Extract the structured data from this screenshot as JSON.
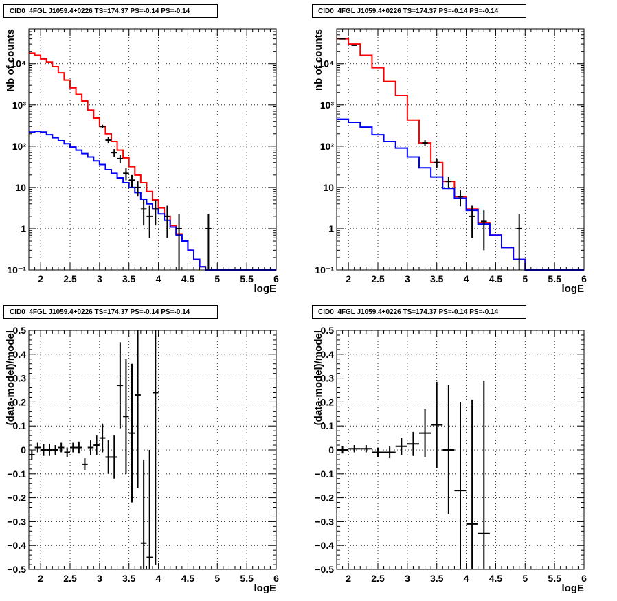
{
  "chart_data": [
    {
      "type": "step",
      "title": "CID0_4FGL J1059.4+0226 TS=174.37 PS=-0.14 PS=-0.14",
      "xlabel": "logE",
      "ylabel": "Nb of counts",
      "xlim": [
        1.8,
        6.0
      ],
      "ylim": [
        0.1,
        70000
      ],
      "yscale": "log",
      "xticks": [
        2,
        2.5,
        3,
        3.5,
        4,
        4.5,
        5,
        5.5,
        6
      ],
      "xtick_labels": [
        "2",
        "2.5",
        "3",
        "3.5",
        "4",
        "4.5",
        "5",
        "5.5",
        "6"
      ],
      "yticks": [
        0.1,
        1,
        10,
        100,
        1000,
        10000
      ],
      "ytick_labels": [
        "10⁻¹",
        "1",
        "10",
        "10²",
        "10³",
        "10⁴"
      ],
      "grid": true,
      "bin_edges": [
        1.8,
        1.9,
        2.0,
        2.1,
        2.2,
        2.3,
        2.4,
        2.5,
        2.6,
        2.7,
        2.8,
        2.9,
        3.0,
        3.1,
        3.2,
        3.3,
        3.4,
        3.5,
        3.6,
        3.7,
        3.8,
        3.9,
        4.0,
        4.1,
        4.2,
        4.3,
        4.4,
        4.5,
        4.6,
        4.7,
        4.8,
        4.9,
        5.0,
        5.1,
        5.2,
        5.3,
        5.4,
        5.5,
        5.6,
        5.7,
        5.8,
        5.9,
        6.0
      ],
      "series": [
        {
          "color": "#ff0000",
          "values": [
            18000,
            16000,
            13000,
            11000,
            8500,
            6000,
            4000,
            2600,
            1800,
            1250,
            750,
            480,
            300,
            200,
            130,
            80,
            52,
            32,
            20,
            13,
            8,
            5,
            3.2,
            2,
            1.2,
            0.75,
            0.5,
            0.3,
            0.18,
            0.12,
            0.1,
            0.1,
            0.1,
            0.1,
            0.1,
            0.1,
            0.1,
            0.1,
            0.1,
            0.1,
            0.1,
            0.1
          ]
        },
        {
          "color": "#0000ff",
          "values": [
            220,
            230,
            220,
            190,
            160,
            135,
            115,
            95,
            80,
            66,
            55,
            44,
            36,
            27,
            22,
            17,
            13,
            10,
            7.5,
            5.2,
            4,
            3,
            2.3,
            1.6,
            1.1,
            0.7,
            0.5,
            0.3,
            0.18,
            0.12,
            0.1,
            0.1,
            0.1,
            0.1,
            0.1,
            0.1,
            0.1,
            0.1,
            0.1,
            0.1,
            0.1,
            0.1
          ]
        }
      ],
      "points": [
        {
          "x": 3.05,
          "y": 300,
          "ylo": 270,
          "yhi": 330
        },
        {
          "x": 3.15,
          "y": 140,
          "ylo": 120,
          "yhi": 165
        },
        {
          "x": 3.25,
          "y": 70,
          "ylo": 55,
          "yhi": 85
        },
        {
          "x": 3.35,
          "y": 50,
          "ylo": 38,
          "yhi": 62
        },
        {
          "x": 3.45,
          "y": 22,
          "ylo": 15,
          "yhi": 30
        },
        {
          "x": 3.55,
          "y": 15,
          "ylo": 10,
          "yhi": 20
        },
        {
          "x": 3.65,
          "y": 10,
          "ylo": 6,
          "yhi": 14
        },
        {
          "x": 3.75,
          "y": 3,
          "ylo": 1.2,
          "yhi": 5
        },
        {
          "x": 3.85,
          "y": 2,
          "ylo": 0.6,
          "yhi": 3.6
        },
        {
          "x": 3.95,
          "y": 3,
          "ylo": 1.2,
          "yhi": 5
        },
        {
          "x": 4.15,
          "y": 2,
          "ylo": 0.6,
          "yhi": 3.6
        },
        {
          "x": 4.35,
          "y": 1,
          "ylo": 0.1,
          "yhi": 2.3
        },
        {
          "x": 4.85,
          "y": 1,
          "ylo": 0.1,
          "yhi": 2.3
        }
      ]
    },
    {
      "type": "step",
      "title": "CID0_4FGL J1059.4+0226 TS=174.37 PS=-0.14 PS=-0.14",
      "xlabel": "logE",
      "ylabel": "nb of counts",
      "xlim": [
        1.8,
        6.0
      ],
      "ylim": [
        0.1,
        70000
      ],
      "yscale": "log",
      "xticks": [
        2,
        2.5,
        3,
        3.5,
        4,
        4.5,
        5,
        5.5,
        6
      ],
      "xtick_labels": [
        "2",
        "2.5",
        "3",
        "3.5",
        "4",
        "4.5",
        "5",
        "5.5",
        "6"
      ],
      "yticks": [
        0.1,
        1,
        10,
        100,
        1000,
        10000
      ],
      "ytick_labels": [
        "10⁻¹",
        "1",
        "10",
        "10²",
        "10³",
        "10⁴"
      ],
      "grid": true,
      "bin_edges": [
        1.8,
        2.0,
        2.2,
        2.4,
        2.6,
        2.8,
        3.0,
        3.2,
        3.4,
        3.6,
        3.8,
        4.0,
        4.2,
        4.4,
        4.6,
        4.8,
        5.0,
        5.2,
        5.4,
        5.6,
        5.8,
        6.0
      ],
      "series": [
        {
          "color": "#ff0000",
          "values": [
            40000,
            30000,
            16000,
            8000,
            3700,
            1700,
            430,
            120,
            40,
            14,
            6,
            3,
            1.4,
            0.7,
            0.35,
            0.18,
            0.1,
            0.1,
            0.1,
            0.1,
            0.1
          ]
        },
        {
          "color": "#0000ff",
          "values": [
            450,
            380,
            290,
            190,
            130,
            90,
            55,
            30,
            18,
            9.5,
            5.5,
            2.8,
            1.3,
            0.7,
            0.35,
            0.18,
            0.1,
            0.1,
            0.1,
            0.1,
            0.1
          ]
        }
      ],
      "points": [
        {
          "x": 1.9,
          "y": 40000,
          "ylo": 39000,
          "yhi": 41000
        },
        {
          "x": 2.1,
          "y": 28000,
          "ylo": 27000,
          "yhi": 29000
        },
        {
          "x": 3.3,
          "y": 120,
          "ylo": 100,
          "yhi": 140
        },
        {
          "x": 3.5,
          "y": 40,
          "ylo": 30,
          "yhi": 50
        },
        {
          "x": 3.7,
          "y": 14,
          "ylo": 10,
          "yhi": 18
        },
        {
          "x": 3.9,
          "y": 6,
          "ylo": 3.5,
          "yhi": 8.5
        },
        {
          "x": 4.1,
          "y": 2,
          "ylo": 0.6,
          "yhi": 3.6
        },
        {
          "x": 4.3,
          "y": 1.5,
          "ylo": 0.3,
          "yhi": 2.8
        },
        {
          "x": 4.9,
          "y": 1,
          "ylo": 0.1,
          "yhi": 2.3
        }
      ]
    },
    {
      "type": "errorbar",
      "title": "CID0_4FGL J1059.4+0226 TS=174.37 PS=-0.14 PS=-0.14",
      "xlabel": "logE",
      "ylabel": "(data-model)/model",
      "xlim": [
        1.8,
        6.0
      ],
      "ylim": [
        -0.5,
        0.5
      ],
      "yscale": "linear",
      "xticks": [
        2,
        2.5,
        3,
        3.5,
        4,
        4.5,
        5,
        5.5,
        6
      ],
      "xtick_labels": [
        "2",
        "2.5",
        "3",
        "3.5",
        "4",
        "4.5",
        "5",
        "5.5",
        "6"
      ],
      "yticks": [
        -0.5,
        -0.4,
        -0.3,
        -0.2,
        -0.1,
        0,
        0.1,
        0.2,
        0.3,
        0.4,
        0.5
      ],
      "ytick_labels": [
        "−0.5",
        "−0.4",
        "−0.3",
        "−0.2",
        "−0.1",
        "0",
        "0.1",
        "0.2",
        "0.3",
        "0.4",
        "0.5"
      ],
      "grid": true,
      "xerr": 0.05,
      "points": [
        {
          "x": 1.85,
          "y": -0.02,
          "err": 0.02
        },
        {
          "x": 1.95,
          "y": 0.01,
          "err": 0.02
        },
        {
          "x": 2.05,
          "y": 0.0,
          "err": 0.025
        },
        {
          "x": 2.15,
          "y": 0.0,
          "err": 0.025
        },
        {
          "x": 2.25,
          "y": 0.0,
          "err": 0.02
        },
        {
          "x": 2.35,
          "y": 0.01,
          "err": 0.02
        },
        {
          "x": 2.45,
          "y": -0.01,
          "err": 0.02
        },
        {
          "x": 2.55,
          "y": 0.01,
          "err": 0.02
        },
        {
          "x": 2.65,
          "y": 0.01,
          "err": 0.025
        },
        {
          "x": 2.75,
          "y": -0.06,
          "err": 0.025
        },
        {
          "x": 2.85,
          "y": 0.01,
          "err": 0.03
        },
        {
          "x": 2.95,
          "y": 0.02,
          "err": 0.04
        },
        {
          "x": 3.05,
          "y": 0.05,
          "err": 0.06
        },
        {
          "x": 3.15,
          "y": -0.03,
          "err": 0.07
        },
        {
          "x": 3.25,
          "y": -0.03,
          "err": 0.09
        },
        {
          "x": 3.35,
          "y": 0.27,
          "err": 0.18
        },
        {
          "x": 3.45,
          "y": 0.14,
          "err": 0.24
        },
        {
          "x": 3.55,
          "y": 0.07,
          "err": 0.29
        },
        {
          "x": 3.65,
          "y": 0.23,
          "err": 0.39
        },
        {
          "x": 3.75,
          "y": -0.39,
          "err": 0.35
        },
        {
          "x": 3.85,
          "y": -0.45,
          "err": 0.45
        },
        {
          "x": 3.95,
          "y": 0.24,
          "err": 0.72
        }
      ]
    },
    {
      "type": "errorbar",
      "title": "CID0_4FGL J1059.4+0226 TS=174.37 PS=-0.14 PS=-0.14",
      "xlabel": "logE",
      "ylabel": "(data-model)/model",
      "xlim": [
        1.8,
        6.0
      ],
      "ylim": [
        -0.5,
        0.5
      ],
      "yscale": "linear",
      "xticks": [
        2,
        2.5,
        3,
        3.5,
        4,
        4.5,
        5,
        5.5,
        6
      ],
      "xtick_labels": [
        "2",
        "2.5",
        "3",
        "3.5",
        "4",
        "4.5",
        "5",
        "5.5",
        "6"
      ],
      "yticks": [
        -0.5,
        -0.4,
        -0.3,
        -0.2,
        -0.1,
        0,
        0.1,
        0.2,
        0.3,
        0.4,
        0.5
      ],
      "ytick_labels": [
        "−0.5",
        "−0.4",
        "−0.3",
        "−0.2",
        "−0.1",
        "0",
        "0.1",
        "0.2",
        "0.3",
        "0.4",
        "0.5"
      ],
      "grid": true,
      "xerr": 0.1,
      "points": [
        {
          "x": 1.9,
          "y": 0.0,
          "err": 0.015
        },
        {
          "x": 2.1,
          "y": 0.005,
          "err": 0.015
        },
        {
          "x": 2.3,
          "y": 0.005,
          "err": 0.015
        },
        {
          "x": 2.5,
          "y": -0.01,
          "err": 0.02
        },
        {
          "x": 2.7,
          "y": -0.01,
          "err": 0.025
        },
        {
          "x": 2.9,
          "y": 0.015,
          "err": 0.035
        },
        {
          "x": 3.1,
          "y": 0.025,
          "err": 0.05
        },
        {
          "x": 3.3,
          "y": 0.07,
          "err": 0.1
        },
        {
          "x": 3.5,
          "y": 0.105,
          "err": 0.18
        },
        {
          "x": 3.7,
          "y": 0.0,
          "err": 0.27
        },
        {
          "x": 3.9,
          "y": -0.17,
          "err": 0.37
        },
        {
          "x": 4.1,
          "y": -0.31,
          "err": 0.52
        },
        {
          "x": 4.3,
          "y": -0.35,
          "err": 0.64
        }
      ]
    }
  ]
}
